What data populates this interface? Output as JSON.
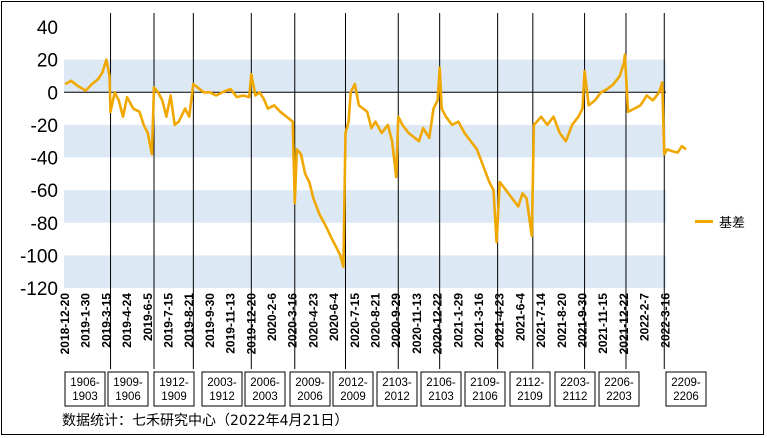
{
  "chart_data": {
    "type": "line",
    "title": "",
    "xlabel": "",
    "ylabel": "",
    "ylim": [
      -120,
      40
    ],
    "yticks": [
      40,
      20,
      0,
      -20,
      -40,
      -60,
      -80,
      -100,
      -120
    ],
    "grid": "alternating horizontal bands",
    "legend_position": "right",
    "line_color": "#f0a800",
    "band_color": "#dce9f5",
    "x_tick_labels": [
      "2018-12-20",
      "2019-1-30",
      "2019-3-15",
      "2019-4-24",
      "2019-6-5",
      "2019-7-15",
      "2019-8-21",
      "2019-9-30",
      "2019-11-13",
      "2019-12-20",
      "2020-2-6",
      "2020-3-16",
      "2020-4-23",
      "2020-6-4",
      "2020-7-15",
      "2020-8-21",
      "2020-9-29",
      "2020-11-13",
      "2020-12-22",
      "2021-1-29",
      "2021-3-16",
      "2021-4-23",
      "2021-6-4",
      "2021-7-14",
      "2021-8-20",
      "2021-9-30",
      "2021-11-15",
      "2021-12-22",
      "2022-2-7",
      "2022-3-16"
    ],
    "contract_boxes": [
      "1906-\n1903",
      "1909-\n1906",
      "1912-\n1909",
      "2003-\n1912",
      "2006-\n2003",
      "2009-\n2006",
      "2012-\n2009",
      "2103-\n2012",
      "2106-\n2103",
      "2109-\n2106",
      "2112-\n2109",
      "2203-\n2112",
      "2206-\n2203",
      "2209-\n2206"
    ],
    "series": [
      {
        "name": "基差",
        "points": [
          [
            0,
            5
          ],
          [
            0.3,
            7
          ],
          [
            0.6,
            4
          ],
          [
            1.0,
            1
          ],
          [
            1.3,
            5
          ],
          [
            1.6,
            8
          ],
          [
            1.8,
            12
          ],
          [
            2.0,
            20
          ],
          [
            2.15,
            10
          ],
          [
            2.2,
            -12
          ],
          [
            2.4,
            0
          ],
          [
            2.6,
            -5
          ],
          [
            2.8,
            -15
          ],
          [
            3.0,
            -3
          ],
          [
            3.3,
            -10
          ],
          [
            3.6,
            -12
          ],
          [
            3.8,
            -20
          ],
          [
            4.0,
            -25
          ],
          [
            4.2,
            -38
          ],
          [
            4.3,
            3
          ],
          [
            4.5,
            0
          ],
          [
            4.7,
            -5
          ],
          [
            4.9,
            -15
          ],
          [
            5.1,
            -2
          ],
          [
            5.3,
            -20
          ],
          [
            5.5,
            -18
          ],
          [
            5.8,
            -10
          ],
          [
            6.0,
            -15
          ],
          [
            6.2,
            5
          ],
          [
            6.4,
            3
          ],
          [
            6.7,
            0
          ],
          [
            7.0,
            0
          ],
          [
            7.3,
            -2
          ],
          [
            7.6,
            0
          ],
          [
            8.0,
            2
          ],
          [
            8.3,
            -3
          ],
          [
            8.6,
            -2
          ],
          [
            8.9,
            -3
          ],
          [
            9.0,
            11
          ],
          [
            9.2,
            -2
          ],
          [
            9.4,
            0
          ],
          [
            9.6,
            -4
          ],
          [
            9.8,
            -10
          ],
          [
            10.1,
            -8
          ],
          [
            10.4,
            -12
          ],
          [
            10.7,
            -15
          ],
          [
            11.0,
            -18
          ],
          [
            11.1,
            -68
          ],
          [
            11.2,
            -35
          ],
          [
            11.4,
            -38
          ],
          [
            11.6,
            -50
          ],
          [
            11.8,
            -55
          ],
          [
            12.0,
            -65
          ],
          [
            12.3,
            -75
          ],
          [
            12.6,
            -82
          ],
          [
            12.9,
            -90
          ],
          [
            13.1,
            -95
          ],
          [
            13.3,
            -100
          ],
          [
            13.45,
            -107
          ],
          [
            13.55,
            -25
          ],
          [
            13.7,
            -18
          ],
          [
            13.8,
            0
          ],
          [
            14.0,
            5
          ],
          [
            14.2,
            -8
          ],
          [
            14.4,
            -10
          ],
          [
            14.6,
            -12
          ],
          [
            14.8,
            -22
          ],
          [
            15.0,
            -18
          ],
          [
            15.3,
            -25
          ],
          [
            15.6,
            -20
          ],
          [
            15.8,
            -30
          ],
          [
            16.0,
            -52
          ],
          [
            16.1,
            -15
          ],
          [
            16.3,
            -20
          ],
          [
            16.6,
            -25
          ],
          [
            16.9,
            -28
          ],
          [
            17.1,
            -30
          ],
          [
            17.3,
            -22
          ],
          [
            17.6,
            -28
          ],
          [
            17.8,
            -10
          ],
          [
            18.0,
            -5
          ],
          [
            18.1,
            15
          ],
          [
            18.2,
            -10
          ],
          [
            18.4,
            -15
          ],
          [
            18.7,
            -20
          ],
          [
            19.0,
            -18
          ],
          [
            19.3,
            -25
          ],
          [
            19.6,
            -30
          ],
          [
            19.9,
            -35
          ],
          [
            20.2,
            -45
          ],
          [
            20.5,
            -55
          ],
          [
            20.7,
            -60
          ],
          [
            20.85,
            -92
          ],
          [
            21.0,
            -55
          ],
          [
            21.3,
            -60
          ],
          [
            21.6,
            -65
          ],
          [
            21.9,
            -70
          ],
          [
            22.1,
            -62
          ],
          [
            22.3,
            -65
          ],
          [
            22.55,
            -88
          ],
          [
            22.65,
            -20
          ],
          [
            22.8,
            -18
          ],
          [
            23.0,
            -15
          ],
          [
            23.3,
            -20
          ],
          [
            23.6,
            -15
          ],
          [
            23.9,
            -25
          ],
          [
            24.2,
            -30
          ],
          [
            24.5,
            -20
          ],
          [
            24.8,
            -15
          ],
          [
            25.0,
            -10
          ],
          [
            25.1,
            13
          ],
          [
            25.3,
            -8
          ],
          [
            25.6,
            -5
          ],
          [
            25.9,
            0
          ],
          [
            26.2,
            2
          ],
          [
            26.5,
            5
          ],
          [
            26.8,
            10
          ],
          [
            27.0,
            18
          ],
          [
            27.05,
            23
          ],
          [
            27.2,
            -12
          ],
          [
            27.5,
            -10
          ],
          [
            27.8,
            -8
          ],
          [
            28.1,
            -2
          ],
          [
            28.4,
            -5
          ],
          [
            28.7,
            0
          ],
          [
            28.85,
            6
          ],
          [
            28.95,
            -38
          ],
          [
            29.1,
            -35
          ],
          [
            29.3,
            -36
          ],
          [
            29.6,
            -37
          ],
          [
            29.8,
            -33
          ],
          [
            30.0,
            -35
          ]
        ]
      }
    ]
  },
  "legend": {
    "label": "基差"
  },
  "source": "数据统计：七禾研究中心（2022年4月21日）"
}
